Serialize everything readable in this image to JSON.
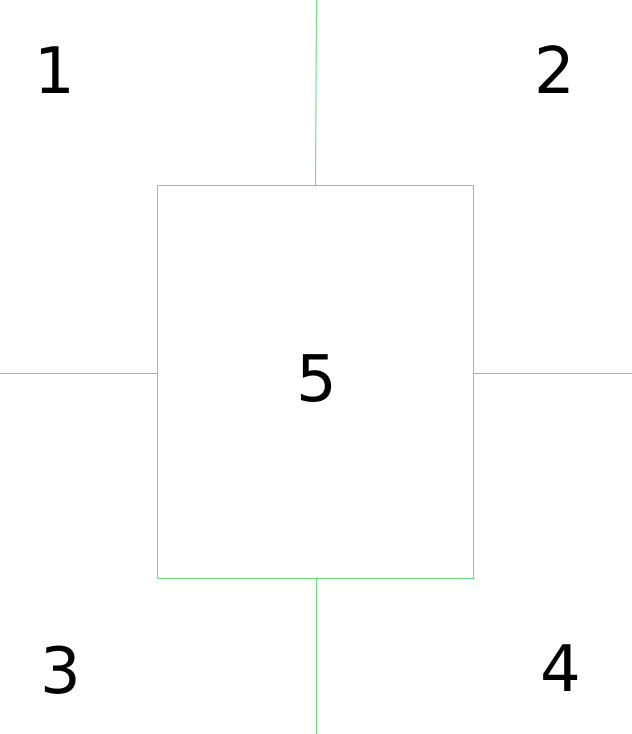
{
  "diagram": {
    "line_color": "#66e07a",
    "text_color": "#000000",
    "labels": {
      "q1": "1",
      "q2": "2",
      "q3": "3",
      "q4": "4",
      "center": "5"
    }
  }
}
